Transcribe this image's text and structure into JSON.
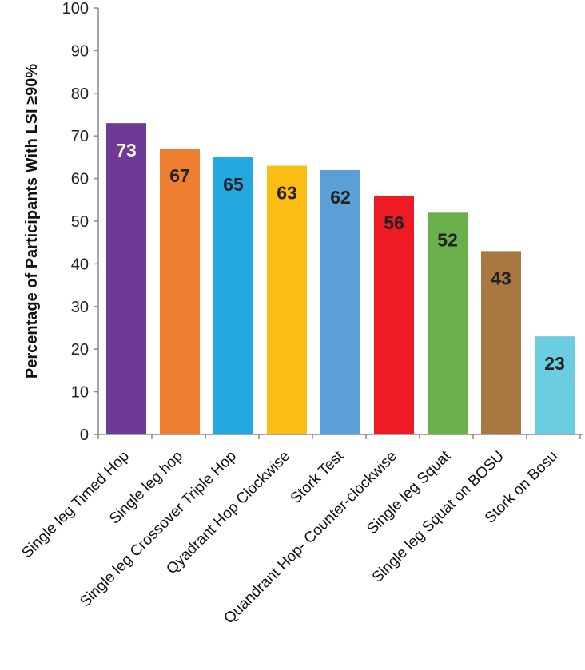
{
  "chart_data": {
    "type": "bar",
    "title": "",
    "xlabel": "",
    "ylabel": "Percentage of Participants With LSI ≥90%",
    "ylim": [
      0,
      100
    ],
    "yticks": [
      0,
      10,
      20,
      30,
      40,
      50,
      60,
      70,
      80,
      90,
      100
    ],
    "grid": false,
    "legend": "none",
    "categories": [
      "Single leg Timed Hop",
      "Single leg hop",
      "Single leg Crossover Triple Hop",
      "Qyadrant Hop Clockwise",
      "Stork Test",
      "Quandrant Hop- Counter-clockwise",
      "Single leg Squat",
      "Single leg Squat on BOSU",
      "Stork on Bosu"
    ],
    "values": [
      73,
      67,
      65,
      63,
      62,
      56,
      52,
      43,
      23
    ],
    "colors": [
      "#6f3996",
      "#ef7f30",
      "#24a8e0",
      "#fbbd14",
      "#5b9fd8",
      "#ed1c24",
      "#6ab04c",
      "#a87841",
      "#6ccde0"
    ],
    "label_colors": [
      "#ffffff",
      "#222222",
      "#222222",
      "#222222",
      "#222222",
      "#222222",
      "#222222",
      "#222222",
      "#222222"
    ]
  }
}
